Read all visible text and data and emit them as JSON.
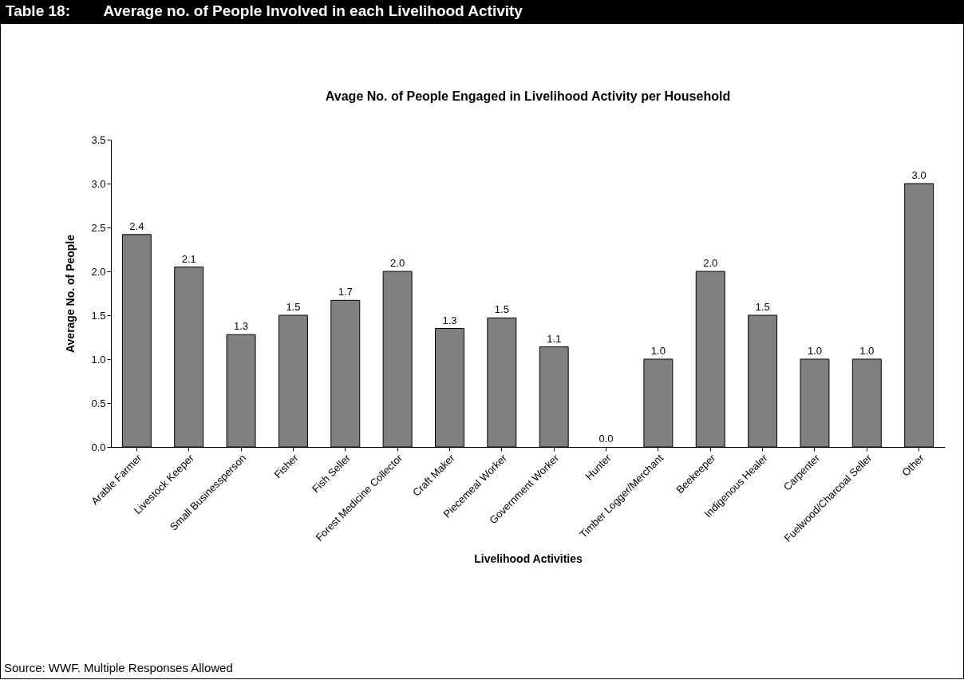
{
  "chart_data": {
    "type": "bar",
    "title": "Table 18:        Average no. of People Involved in each Livelihood Activity",
    "subtitle": "Avage No. of People Engaged in Livelihood Activity per Household",
    "xlabel": "Livelihood Activities",
    "ylabel": "Average No. of People",
    "categories": [
      "Arable Farmer",
      "Livestock Keeper",
      "Small Businessperson",
      "Fisher",
      "Fish Seller",
      "Forest Medicine Collector",
      "Craft Maker",
      "Piecemeal Worker",
      "Government Worker",
      "Hunter",
      "Timber Logger/Merchant",
      "Beekeeper",
      "Indigenous Healer",
      "Carpenter",
      "Fuelwood/Charcoal Seller",
      "Other"
    ],
    "values": [
      2.42,
      2.05,
      1.28,
      1.5,
      1.67,
      2.0,
      1.35,
      1.47,
      1.14,
      0,
      1.0,
      2.0,
      1.5,
      1.0,
      1.0,
      3.0
    ],
    "value_labels": [
      "2.4",
      "2.1",
      "1.3",
      "1.5",
      "1.7",
      "2.0",
      "1.3",
      "1.5",
      "1.1",
      "0.0",
      "1.0",
      "2.0",
      "1.5",
      "1.0",
      "1.0",
      "3.0"
    ],
    "color": "#808080",
    "ylim": [
      0,
      3.5
    ],
    "yticks": [
      {
        "value": 0,
        "label": "0.0"
      },
      {
        "value": 0.5,
        "label": "0.5"
      },
      {
        "value": 1,
        "label": "1.0"
      },
      {
        "value": 1.5,
        "label": "1.5"
      },
      {
        "value": 2,
        "label": "2.0"
      },
      {
        "value": 2.5,
        "label": "2.5"
      },
      {
        "value": 3,
        "label": "3.0"
      },
      {
        "value": 3.5,
        "label": "3.5"
      }
    ],
    "grid": false,
    "annotations": [
      "Source: WWF. Multiple Responses Allowed"
    ]
  }
}
